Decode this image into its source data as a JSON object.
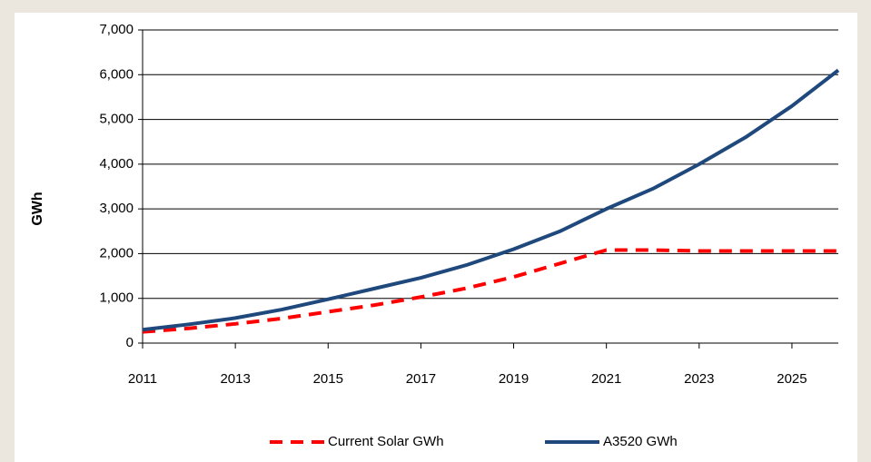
{
  "chart_data": {
    "type": "line",
    "y_label": "GWh",
    "x": [
      2011,
      2012,
      2013,
      2014,
      2015,
      2016,
      2017,
      2018,
      2019,
      2020,
      2021,
      2022,
      2023,
      2024,
      2025,
      2026
    ],
    "series": [
      {
        "name": "Current Solar GWh",
        "color": "#ff0000",
        "dashed": true,
        "values": [
          250,
          330,
          430,
          550,
          700,
          850,
          1030,
          1230,
          1480,
          1780,
          2080,
          2080,
          2060,
          2060,
          2060,
          2060
        ]
      },
      {
        "name": "A3520 GWh",
        "color": "#1f497d",
        "dashed": false,
        "values": [
          300,
          420,
          560,
          750,
          980,
          1220,
          1460,
          1750,
          2100,
          2500,
          3000,
          3450,
          4000,
          4600,
          5300,
          6100
        ]
      }
    ],
    "xlim": [
      2011,
      2026
    ],
    "xticks": [
      2011,
      2013,
      2015,
      2017,
      2019,
      2021,
      2023,
      2025
    ],
    "ylim": [
      0,
      7000
    ],
    "yticks": [
      0,
      {
        "value": 1000,
        "label": "1,000"
      },
      {
        "value": 2000,
        "label": "2,000"
      },
      {
        "value": 3000,
        "label": "3,000"
      },
      {
        "value": 4000,
        "label": "4,000"
      },
      {
        "value": 5000,
        "label": "5,000"
      },
      {
        "value": 6000,
        "label": "6,000"
      },
      {
        "value": 7000,
        "label": "7,000"
      }
    ],
    "grid": true,
    "legend": "bottom"
  }
}
